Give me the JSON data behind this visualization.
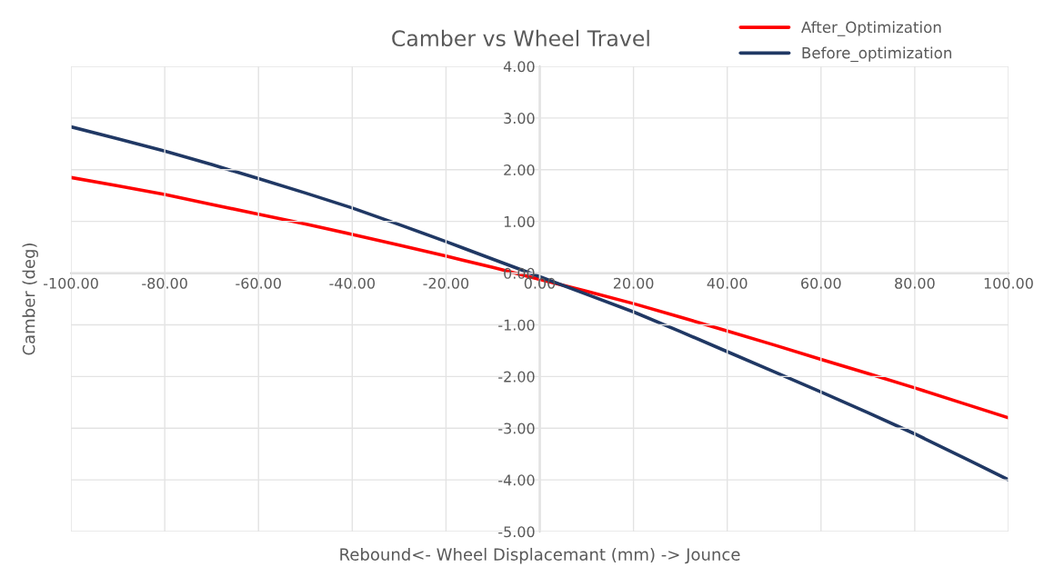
{
  "chart_data": {
    "type": "line",
    "title": "Camber vs Wheel Travel",
    "xlabel": "Rebound<- Wheel Displacemant (mm) -> Jounce",
    "ylabel": "Camber (deg)",
    "x": [
      -100,
      -90,
      -80,
      -70,
      -60,
      -50,
      -40,
      -30,
      -20,
      -10,
      0,
      10,
      20,
      30,
      40,
      50,
      60,
      70,
      80,
      90,
      100
    ],
    "series": [
      {
        "name": "After_Optimization",
        "color": "#ff0000",
        "values": [
          1.85,
          1.69,
          1.52,
          1.33,
          1.14,
          0.95,
          0.75,
          0.54,
          0.33,
          0.11,
          -0.12,
          -0.35,
          -0.59,
          -0.85,
          -1.12,
          -1.39,
          -1.67,
          -1.94,
          -2.22,
          -2.51,
          -2.8
        ]
      },
      {
        "name": "Before_optimization",
        "color": "#203864",
        "values": [
          2.83,
          2.6,
          2.36,
          2.1,
          1.83,
          1.55,
          1.26,
          0.94,
          0.61,
          0.27,
          -0.07,
          -0.41,
          -0.75,
          -1.13,
          -1.52,
          -1.91,
          -2.3,
          -2.7,
          -3.11,
          -3.55,
          -4.0
        ]
      }
    ],
    "xlim": [
      -100,
      100
    ],
    "ylim": [
      -5,
      4
    ],
    "xticks": [
      {
        "value": -100,
        "label": "-100.00"
      },
      {
        "value": -80,
        "label": "-80.00"
      },
      {
        "value": -60,
        "label": "-60.00"
      },
      {
        "value": -40,
        "label": "-40.00"
      },
      {
        "value": -20,
        "label": "-20.00"
      },
      {
        "value": 0,
        "label": "0.00"
      },
      {
        "value": 20,
        "label": "20.00"
      },
      {
        "value": 40,
        "label": "40.00"
      },
      {
        "value": 60,
        "label": "60.00"
      },
      {
        "value": 80,
        "label": "80.00"
      },
      {
        "value": 100,
        "label": "100.00"
      }
    ],
    "yticks": [
      {
        "value": -5,
        "label": "-5.00"
      },
      {
        "value": -4,
        "label": "-4.00"
      },
      {
        "value": -3,
        "label": "-3.00"
      },
      {
        "value": -2,
        "label": "-2.00"
      },
      {
        "value": -1,
        "label": "-1.00"
      },
      {
        "value": 0,
        "label": "0.00"
      },
      {
        "value": 1,
        "label": "1.00"
      },
      {
        "value": 2,
        "label": "2.00"
      },
      {
        "value": 3,
        "label": "3.00"
      },
      {
        "value": 4,
        "label": "4.00"
      }
    ],
    "grid": true,
    "legend": "top right",
    "marker": "none",
    "line_style": "solid"
  }
}
